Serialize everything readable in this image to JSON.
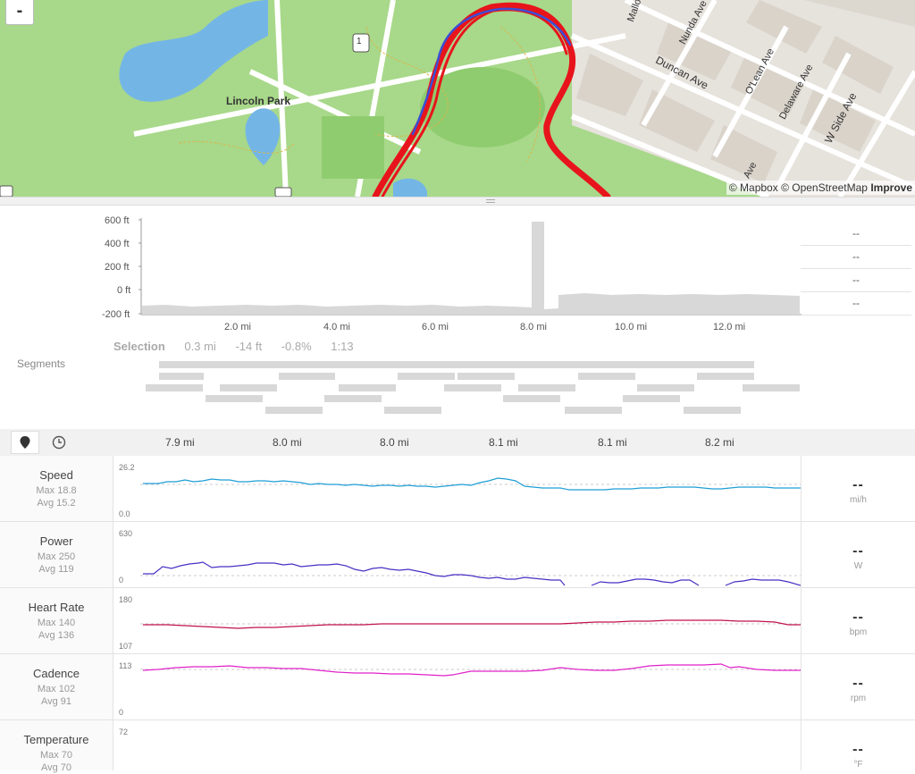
{
  "map": {
    "zoom_out_label": "-",
    "park_label": "Lincoln Park",
    "route_shield": "1",
    "streets": [
      "Mallory Ave",
      "Nunda Ave",
      "Duncan Ave",
      "O'Lean Ave",
      "Delaware Ave",
      "W Side Ave",
      "Ave"
    ],
    "attribution_1": "© Mapbox",
    "attribution_2": "© OpenStreetMap",
    "attribution_3": "Improve",
    "colors": {
      "park": "#a8d88a",
      "water": "#73b6e6",
      "route": "#e8141b",
      "route_alt": "#3a4fd6"
    }
  },
  "elevation": {
    "y_labels": [
      "600 ft",
      "400 ft",
      "200 ft",
      "0 ft",
      "-200 ft"
    ],
    "x_labels": [
      "2.0 mi",
      "4.0 mi",
      "6.0 mi",
      "8.0 mi",
      "10.0 mi",
      "12.0 mi"
    ],
    "right_stats": [
      "--",
      "--",
      "--",
      "--"
    ]
  },
  "selection": {
    "label": "Selection",
    "distance": "0.3 mi",
    "elevation": "-14 ft",
    "grade": "-0.8%",
    "time": "1:13"
  },
  "segments_label": "Segments",
  "toolbar": {
    "map_pin_icon": "map-pin-icon",
    "clock_icon": "clock-icon",
    "mi_labels": [
      "7.9 mi",
      "8.0 mi",
      "8.0 mi",
      "8.1 mi",
      "8.1 mi",
      "8.2 mi"
    ]
  },
  "metrics": [
    {
      "name": "Speed",
      "max": "Max 18.8",
      "avg": "Avg 15.2",
      "ymax": "26.2",
      "ymin": "0.0",
      "value": "--",
      "unit": "mi/h",
      "color": "#1f9ed6"
    },
    {
      "name": "Power",
      "max": "Max 250",
      "avg": "Avg 119",
      "ymax": "630",
      "ymin": "0",
      "value": "--",
      "unit": "W",
      "color": "#4b2fc4"
    },
    {
      "name": "Heart Rate",
      "max": "Max 140",
      "avg": "Avg 136",
      "ymax": "180",
      "ymin": "107",
      "value": "--",
      "unit": "bpm",
      "color": "#c2124d"
    },
    {
      "name": "Cadence",
      "max": "Max 102",
      "avg": "Avg 91",
      "ymax": "113",
      "ymin": "0",
      "value": "--",
      "unit": "rpm",
      "color": "#e021c9"
    },
    {
      "name": "Temperature",
      "max": "Max 70",
      "avg": "Avg 70",
      "ymax": "72",
      "ymin": "",
      "value": "--",
      "unit": "°F",
      "color": "#888888"
    }
  ]
}
